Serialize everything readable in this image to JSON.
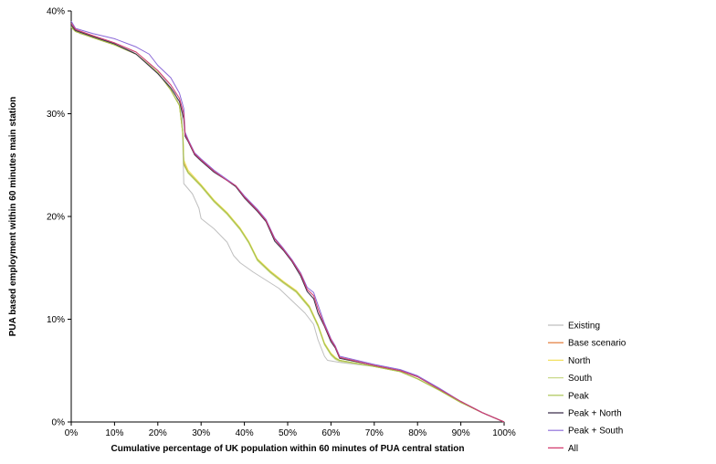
{
  "chart_data": {
    "type": "line",
    "xlabel": "Cumulative percentage of UK population within 60 minutes of PUA central station",
    "ylabel": "PUA based employment within 60 minutes main station",
    "xlim": [
      0,
      100
    ],
    "ylim": [
      0,
      40
    ],
    "x_ticks": [
      "0%",
      "10%",
      "20%",
      "30%",
      "40%",
      "50%",
      "60%",
      "70%",
      "80%",
      "90%",
      "100%"
    ],
    "y_ticks": [
      "0%",
      "10%",
      "20%",
      "30%",
      "40%"
    ],
    "grid": false,
    "legend_position": "right",
    "series": [
      {
        "name": "Existing",
        "color": "#bfbfbf",
        "points": [
          [
            0,
            38.6
          ],
          [
            2,
            37.8
          ],
          [
            8,
            37.1
          ],
          [
            14,
            36.1
          ],
          [
            20,
            34.2
          ],
          [
            24,
            32.0
          ],
          [
            25.6,
            30.0
          ],
          [
            26,
            23.2
          ],
          [
            28,
            22.2
          ],
          [
            29.5,
            20.8
          ],
          [
            30,
            19.8
          ],
          [
            33,
            18.8
          ],
          [
            36,
            17.5
          ],
          [
            37.5,
            16.2
          ],
          [
            39,
            15.5
          ],
          [
            42,
            14.6
          ],
          [
            45,
            13.8
          ],
          [
            48,
            13.0
          ],
          [
            51,
            11.8
          ],
          [
            54,
            10.6
          ],
          [
            56,
            9.5
          ],
          [
            57,
            8.0
          ],
          [
            58.5,
            6.4
          ],
          [
            59.2,
            6.0
          ],
          [
            62,
            5.8
          ],
          [
            70,
            5.4
          ],
          [
            76,
            4.9
          ],
          [
            80,
            4.2
          ],
          [
            85,
            3.1
          ],
          [
            90,
            1.9
          ],
          [
            95,
            0.9
          ],
          [
            100,
            0
          ]
        ]
      },
      {
        "name": "Base scenario",
        "color": "#e0702a",
        "points": [
          [
            0,
            38.4
          ],
          [
            1,
            38.0
          ],
          [
            5,
            37.4
          ],
          [
            10,
            36.7
          ],
          [
            15,
            35.8
          ],
          [
            20,
            34.0
          ],
          [
            23,
            32.3
          ],
          [
            25,
            30.8
          ],
          [
            25.8,
            28.0
          ],
          [
            26,
            25.2
          ],
          [
            27,
            24.3
          ],
          [
            30,
            23.0
          ],
          [
            33,
            21.5
          ],
          [
            36,
            20.3
          ],
          [
            39,
            18.8
          ],
          [
            41,
            17.5
          ],
          [
            43,
            15.8
          ],
          [
            46,
            14.6
          ],
          [
            49,
            13.6
          ],
          [
            52,
            12.7
          ],
          [
            55,
            11.2
          ],
          [
            57,
            9.4
          ],
          [
            58.5,
            7.6
          ],
          [
            60,
            6.6
          ],
          [
            61,
            6.2
          ],
          [
            62,
            6.0
          ],
          [
            70,
            5.4
          ],
          [
            76,
            4.9
          ],
          [
            80,
            4.2
          ],
          [
            85,
            3.1
          ],
          [
            90,
            1.9
          ],
          [
            95,
            0.9
          ],
          [
            100,
            0
          ]
        ]
      },
      {
        "name": "North",
        "color": "#f2e060",
        "points": [
          [
            0,
            38.5
          ],
          [
            1,
            38.1
          ],
          [
            5,
            37.5
          ],
          [
            10,
            36.7
          ],
          [
            15,
            35.8
          ],
          [
            20,
            34.0
          ],
          [
            23,
            32.3
          ],
          [
            25,
            30.8
          ],
          [
            25.8,
            28.0
          ],
          [
            26,
            25.5
          ],
          [
            27,
            24.5
          ],
          [
            30,
            23.1
          ],
          [
            33,
            21.6
          ],
          [
            36,
            20.4
          ],
          [
            39,
            18.9
          ],
          [
            41,
            17.6
          ],
          [
            43,
            15.9
          ],
          [
            46,
            14.7
          ],
          [
            49,
            13.7
          ],
          [
            52,
            12.8
          ],
          [
            55,
            11.3
          ],
          [
            57,
            9.5
          ],
          [
            58.5,
            7.7
          ],
          [
            60,
            6.7
          ],
          [
            61,
            6.3
          ],
          [
            62,
            6.0
          ],
          [
            70,
            5.4
          ],
          [
            76,
            4.9
          ],
          [
            80,
            4.2
          ],
          [
            85,
            3.1
          ],
          [
            90,
            1.9
          ],
          [
            95,
            0.9
          ],
          [
            100,
            0
          ]
        ]
      },
      {
        "name": "South",
        "color": "#c9d98a",
        "points": [
          [
            0,
            38.5
          ],
          [
            1,
            38.1
          ],
          [
            5,
            37.5
          ],
          [
            10,
            36.7
          ],
          [
            15,
            35.8
          ],
          [
            20,
            34.0
          ],
          [
            23,
            32.3
          ],
          [
            25,
            30.8
          ],
          [
            25.8,
            28.0
          ],
          [
            26,
            25.0
          ],
          [
            27,
            24.2
          ],
          [
            30,
            22.9
          ],
          [
            33,
            21.4
          ],
          [
            36,
            20.2
          ],
          [
            39,
            18.7
          ],
          [
            41,
            17.4
          ],
          [
            43,
            15.7
          ],
          [
            46,
            14.5
          ],
          [
            49,
            13.5
          ],
          [
            52,
            12.6
          ],
          [
            55,
            11.1
          ],
          [
            57,
            9.3
          ],
          [
            58.5,
            7.5
          ],
          [
            60,
            6.5
          ],
          [
            61,
            6.1
          ],
          [
            62,
            5.9
          ],
          [
            70,
            5.4
          ],
          [
            76,
            4.9
          ],
          [
            80,
            4.2
          ],
          [
            85,
            3.1
          ],
          [
            90,
            1.9
          ],
          [
            95,
            0.9
          ],
          [
            100,
            0
          ]
        ]
      },
      {
        "name": "Peak",
        "color": "#a6c24a",
        "points": [
          [
            0,
            38.4
          ],
          [
            1,
            38.0
          ],
          [
            5,
            37.4
          ],
          [
            10,
            36.7
          ],
          [
            15,
            35.8
          ],
          [
            20,
            34.0
          ],
          [
            23,
            32.3
          ],
          [
            25,
            30.8
          ],
          [
            25.8,
            28.0
          ],
          [
            26,
            25.1
          ],
          [
            27,
            24.3
          ],
          [
            30,
            23.0
          ],
          [
            33,
            21.5
          ],
          [
            36,
            20.3
          ],
          [
            39,
            18.8
          ],
          [
            41,
            17.5
          ],
          [
            43,
            15.8
          ],
          [
            46,
            14.6
          ],
          [
            49,
            13.6
          ],
          [
            52,
            12.7
          ],
          [
            55,
            11.2
          ],
          [
            57,
            9.4
          ],
          [
            58.5,
            7.6
          ],
          [
            60,
            6.6
          ],
          [
            61,
            6.2
          ],
          [
            62,
            6.0
          ],
          [
            70,
            5.4
          ],
          [
            76,
            4.9
          ],
          [
            80,
            4.2
          ],
          [
            85,
            3.1
          ],
          [
            90,
            1.9
          ],
          [
            95,
            0.9
          ],
          [
            100,
            0
          ]
        ]
      },
      {
        "name": "Peak + North",
        "color": "#3a2f4a",
        "points": [
          [
            0,
            38.6
          ],
          [
            1,
            38.1
          ],
          [
            5,
            37.5
          ],
          [
            10,
            36.8
          ],
          [
            15,
            35.8
          ],
          [
            20,
            33.9
          ],
          [
            23,
            32.5
          ],
          [
            25,
            31.2
          ],
          [
            26,
            29.5
          ],
          [
            26.3,
            27.8
          ],
          [
            27,
            27.3
          ],
          [
            28.5,
            26.0
          ],
          [
            30,
            25.4
          ],
          [
            33,
            24.3
          ],
          [
            36,
            23.5
          ],
          [
            38,
            22.9
          ],
          [
            40,
            21.8
          ],
          [
            43,
            20.5
          ],
          [
            45,
            19.5
          ],
          [
            47,
            17.6
          ],
          [
            49,
            16.7
          ],
          [
            51,
            15.6
          ],
          [
            53,
            14.2
          ],
          [
            54.5,
            12.7
          ],
          [
            56,
            12.0
          ],
          [
            57,
            10.6
          ],
          [
            58.5,
            9.3
          ],
          [
            60,
            7.8
          ],
          [
            61,
            7.2
          ],
          [
            62,
            6.2
          ],
          [
            70,
            5.5
          ],
          [
            76,
            5.0
          ],
          [
            80,
            4.4
          ],
          [
            85,
            3.2
          ],
          [
            90,
            2.0
          ],
          [
            95,
            0.9
          ],
          [
            100,
            0
          ]
        ]
      },
      {
        "name": "Peak + South",
        "color": "#8a68d8",
        "points": [
          [
            0,
            39.0
          ],
          [
            1,
            38.3
          ],
          [
            5,
            37.8
          ],
          [
            10,
            37.3
          ],
          [
            15,
            36.5
          ],
          [
            18,
            35.8
          ],
          [
            20,
            34.7
          ],
          [
            23,
            33.5
          ],
          [
            25,
            32.0
          ],
          [
            26,
            30.5
          ],
          [
            26.3,
            28.2
          ],
          [
            27,
            27.5
          ],
          [
            28.5,
            26.2
          ],
          [
            30,
            25.6
          ],
          [
            33,
            24.5
          ],
          [
            36,
            23.6
          ],
          [
            38,
            23.0
          ],
          [
            40,
            22.0
          ],
          [
            43,
            20.7
          ],
          [
            45,
            19.7
          ],
          [
            47,
            17.9
          ],
          [
            49,
            16.9
          ],
          [
            51,
            15.8
          ],
          [
            53,
            14.5
          ],
          [
            54.5,
            13.1
          ],
          [
            56,
            12.6
          ],
          [
            57,
            11.4
          ],
          [
            58.5,
            9.6
          ],
          [
            60,
            8.1
          ],
          [
            61,
            7.4
          ],
          [
            62,
            6.4
          ],
          [
            70,
            5.6
          ],
          [
            76,
            5.1
          ],
          [
            80,
            4.5
          ],
          [
            85,
            3.3
          ],
          [
            90,
            2.0
          ],
          [
            95,
            0.9
          ],
          [
            100,
            0
          ]
        ]
      },
      {
        "name": "All",
        "color": "#d23a6e",
        "points": [
          [
            0,
            38.8
          ],
          [
            1,
            38.2
          ],
          [
            5,
            37.6
          ],
          [
            10,
            36.9
          ],
          [
            15,
            36.0
          ],
          [
            20,
            34.2
          ],
          [
            23,
            32.8
          ],
          [
            25,
            31.5
          ],
          [
            26,
            30.0
          ],
          [
            26.3,
            28.0
          ],
          [
            27,
            27.4
          ],
          [
            28.5,
            26.1
          ],
          [
            30,
            25.5
          ],
          [
            33,
            24.4
          ],
          [
            36,
            23.5
          ],
          [
            38,
            23.0
          ],
          [
            40,
            21.9
          ],
          [
            43,
            20.6
          ],
          [
            45,
            19.6
          ],
          [
            47,
            17.8
          ],
          [
            49,
            16.8
          ],
          [
            51,
            15.7
          ],
          [
            53,
            14.4
          ],
          [
            54.5,
            12.9
          ],
          [
            56,
            12.3
          ],
          [
            57,
            11.0
          ],
          [
            58.5,
            9.4
          ],
          [
            60,
            8.0
          ],
          [
            61,
            7.3
          ],
          [
            62,
            6.3
          ],
          [
            70,
            5.5
          ],
          [
            76,
            5.0
          ],
          [
            80,
            4.4
          ],
          [
            85,
            3.2
          ],
          [
            90,
            2.0
          ],
          [
            95,
            0.9
          ],
          [
            100,
            0
          ]
        ]
      }
    ]
  }
}
